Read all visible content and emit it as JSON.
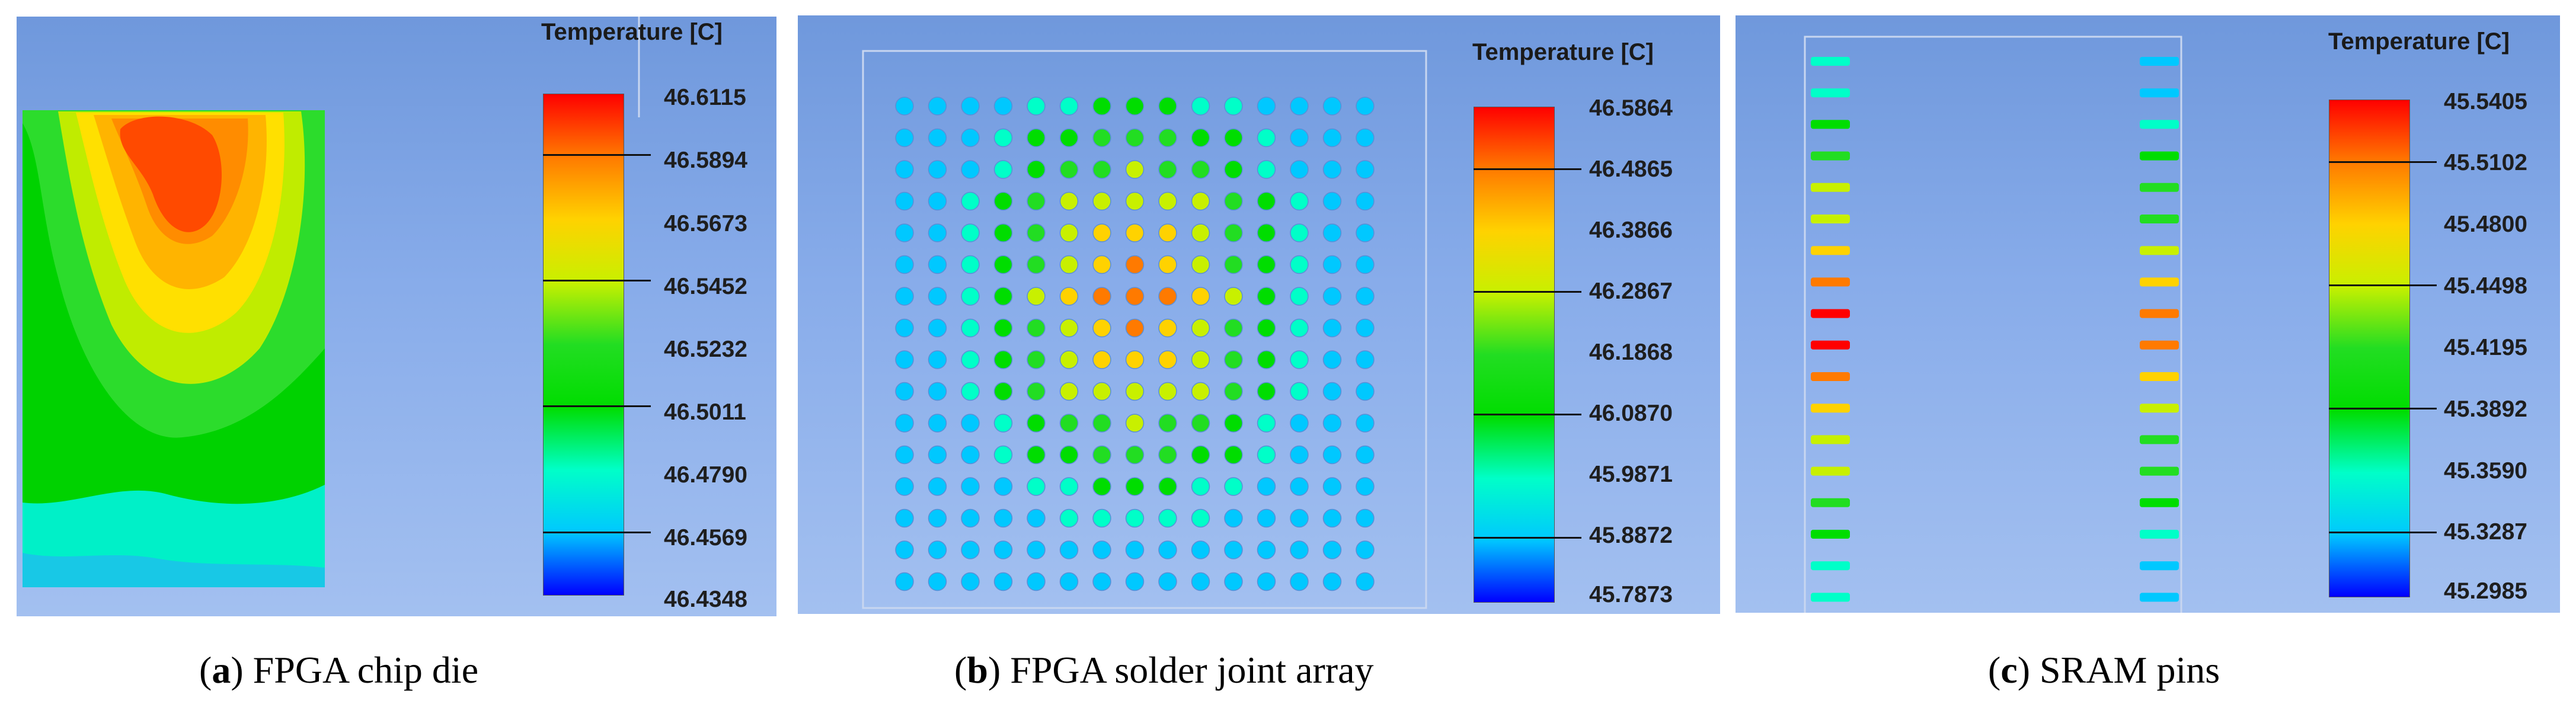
{
  "panels": [
    {
      "id": "a",
      "legend_title": "Temperature [C]",
      "scale_values": [
        "46.6115",
        "46.5894",
        "46.5673",
        "46.5452",
        "46.5232",
        "46.5011",
        "46.4790",
        "46.4569",
        "46.4348"
      ],
      "caption_letter": "a",
      "caption_text": "FPGA chip die"
    },
    {
      "id": "b",
      "legend_title": "Temperature [C]",
      "scale_values": [
        "46.5864",
        "46.4865",
        "46.3866",
        "46.2867",
        "46.1868",
        "46.0870",
        "45.9871",
        "45.8872",
        "45.7873"
      ],
      "caption_letter": "b",
      "caption_text": "FPGA solder joint array"
    },
    {
      "id": "c",
      "legend_title": "Temperature [C]",
      "scale_values": [
        "45.5405",
        "45.5102",
        "45.4800",
        "45.4498",
        "45.4195",
        "45.3892",
        "45.3590",
        "45.3287",
        "45.2985"
      ],
      "caption_letter": "c",
      "caption_text": "SRAM pins"
    }
  ],
  "colormap": [
    "#ff0000",
    "#ff7a00",
    "#ffd200",
    "#c8f000",
    "#22dd22",
    "#00dd00",
    "#00ffc8",
    "#00c8ff",
    "#0000ff"
  ],
  "solder_array": {
    "rows": 16,
    "cols": 15
  },
  "sram_pins": {
    "rows": 18
  }
}
